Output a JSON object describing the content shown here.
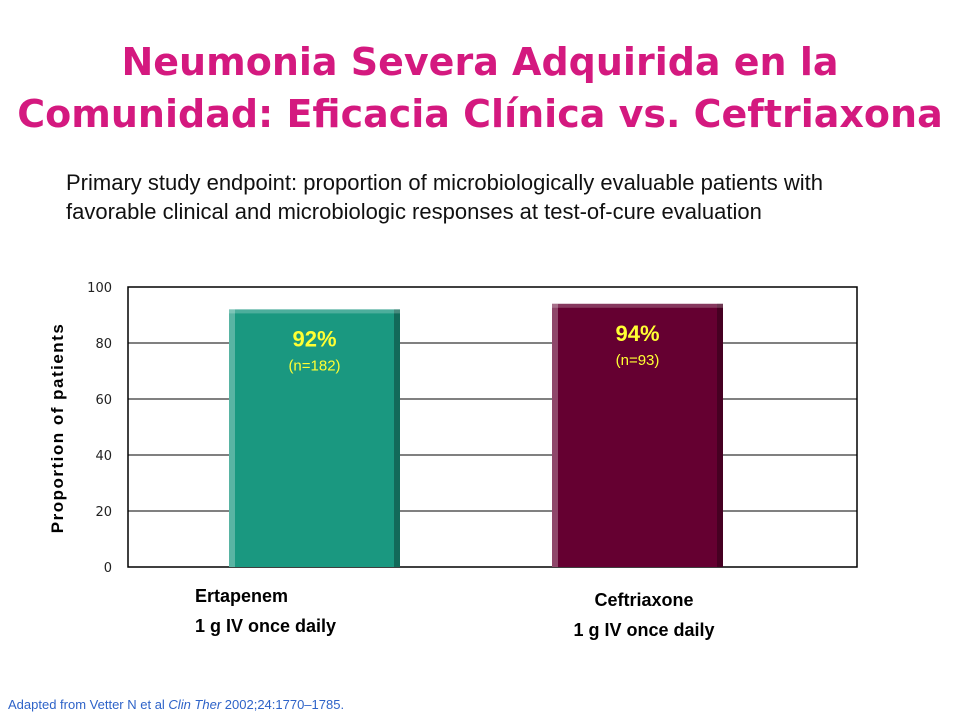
{
  "slide": {
    "title_line1": "Neumonia Severa Adquirida en la",
    "title_line2": "Comunidad: Eficacia Clínica vs. Ceftriaxona",
    "subtitle": "Primary study endpoint: proportion of microbiologically evaluable patients with favorable clinical and microbiologic responses at test-of-cure evaluation",
    "footer": {
      "prefix": "Adapted from Vetter N et al ",
      "journal": "Clin Ther",
      "suffix": " 2002;24:1770–1785."
    }
  },
  "colors": {
    "title": "#d4197f",
    "bar_ertapenem": "#1a9880",
    "bar_ceftriaxone": "#650031",
    "pct_ertapenem": "#ffff33",
    "pct_ceftriaxone": "#ffff33",
    "n_label": "#ffff33",
    "footer": "#2e63c8"
  },
  "chart_data": {
    "type": "bar",
    "ylabel": "Proportion of patients",
    "ylim": [
      0,
      100
    ],
    "yticks": [
      0,
      20,
      40,
      60,
      80,
      100
    ],
    "grid": true,
    "categories": [
      [
        "Ertapenem",
        "1 g IV once daily"
      ],
      [
        "Ceftriaxone",
        "1 g IV once daily"
      ]
    ],
    "values": [
      92,
      94
    ],
    "data_labels": [
      "92%",
      "94%"
    ],
    "n_labels": [
      "(n=182)",
      "(n=93)"
    ]
  }
}
